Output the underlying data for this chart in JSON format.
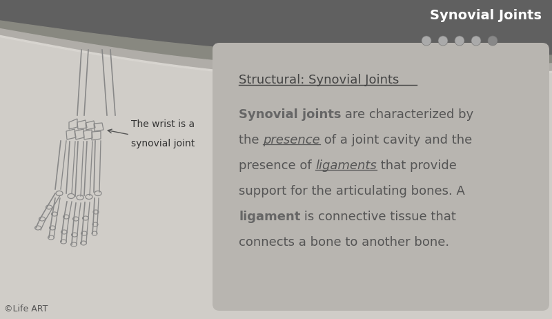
{
  "title_text": "Synovial Joints",
  "title_text_color": "#ffffff",
  "background_color": "#d0cdc8",
  "dots": 5,
  "dot_color": "#888888",
  "dot_filled": [
    false,
    false,
    false,
    false,
    true
  ],
  "box_bg_color": "#b8b5b0",
  "box_title": "Structural: Synovial Joints",
  "box_title_color": "#444444",
  "body_text_color": "#555555",
  "body_bold_color": "#666666",
  "line1_bold": "Synovial joints",
  "line1_rest": " are characterized by",
  "line2_pre": "the ",
  "line2_italic_ul": "presence",
  "line2_rest": " of a joint cavity and the",
  "line3_pre": "presence of ",
  "line3_italic_ul": "ligaments",
  "line3_rest": " that provide",
  "line4": "support for the articulating bones. A",
  "line5_bold": "ligament",
  "line5_rest": " is connective tissue that",
  "line6": "connects a bone to another bone.",
  "wrist_label_line1": "The wrist is a",
  "wrist_label_line2": "synovial joint",
  "wrist_label_color": "#333333",
  "copyright": "©Life ART",
  "copyright_color": "#555555",
  "header_dark_color": "#606060",
  "header_mid_color": "#888880",
  "header_light_color": "#b0ada8",
  "header_stripe_color": "#d8d5d0"
}
